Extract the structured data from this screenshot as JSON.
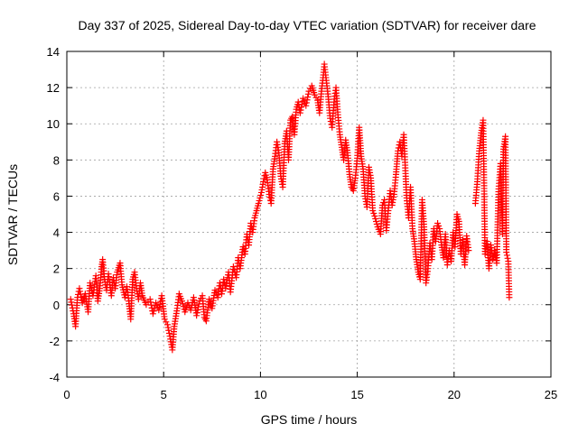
{
  "chart_data": {
    "type": "scatter",
    "title": "Day 337 of 2025, Sidereal Day-to-day VTEC variation (SDTVAR) for receiver dare",
    "xlabel": "GPS time / hours",
    "ylabel": "SDTVAR / TECUs",
    "xlim": [
      0,
      25
    ],
    "ylim": [
      -4,
      14
    ],
    "xticks": [
      0,
      5,
      10,
      15,
      20,
      25
    ],
    "yticks": [
      -4,
      -2,
      0,
      2,
      4,
      6,
      8,
      10,
      12,
      14
    ],
    "xtick_labels": [
      "0",
      "5",
      "10",
      "15",
      "20",
      "25"
    ],
    "ytick_labels": [
      "-4",
      "-2",
      "0",
      "2",
      "4",
      "6",
      "8",
      "10",
      "12",
      "14"
    ],
    "grid": true,
    "marker": "plus",
    "color": "#ff0000",
    "series": [
      {
        "name": "SDTVAR",
        "points": [
          [
            0.2,
            0.3
          ],
          [
            0.35,
            -0.5
          ],
          [
            0.45,
            -1.2
          ],
          [
            0.55,
            0.4
          ],
          [
            0.65,
            0.9
          ],
          [
            0.8,
            0.1
          ],
          [
            0.95,
            0.6
          ],
          [
            1.1,
            -0.4
          ],
          [
            1.2,
            1.2
          ],
          [
            1.35,
            0.5
          ],
          [
            1.5,
            1.6
          ],
          [
            1.6,
            0.2
          ],
          [
            1.7,
            0.9
          ],
          [
            1.8,
            2.1
          ],
          [
            1.85,
            2.5
          ],
          [
            1.95,
            1.4
          ],
          [
            2.05,
            0.8
          ],
          [
            2.15,
            1.7
          ],
          [
            2.3,
            0.5
          ],
          [
            2.4,
            1.5
          ],
          [
            2.5,
            0.9
          ],
          [
            2.6,
            1.8
          ],
          [
            2.75,
            2.3
          ],
          [
            2.85,
            1.1
          ],
          [
            3.0,
            0.4
          ],
          [
            3.1,
            1.0
          ],
          [
            3.2,
            0.2
          ],
          [
            3.3,
            -0.8
          ],
          [
            3.4,
            1.4
          ],
          [
            3.5,
            1.8
          ],
          [
            3.6,
            0.9
          ],
          [
            3.7,
            0.3
          ],
          [
            3.8,
            1.2
          ],
          [
            3.9,
            0.5
          ],
          [
            4.1,
            0.0
          ],
          [
            4.3,
            0.3
          ],
          [
            4.45,
            -0.5
          ],
          [
            4.6,
            0.1
          ],
          [
            4.75,
            -0.3
          ],
          [
            4.9,
            0.5
          ],
          [
            5.05,
            -0.8
          ],
          [
            5.2,
            -1.1
          ],
          [
            5.35,
            -1.9
          ],
          [
            5.45,
            -2.5
          ],
          [
            5.55,
            -1.2
          ],
          [
            5.7,
            -0.2
          ],
          [
            5.8,
            0.6
          ],
          [
            5.95,
            0.2
          ],
          [
            6.1,
            -0.4
          ],
          [
            6.25,
            0.1
          ],
          [
            6.4,
            -0.3
          ],
          [
            6.55,
            0.4
          ],
          [
            6.7,
            -0.6
          ],
          [
            6.85,
            0.2
          ],
          [
            7.0,
            0.5
          ],
          [
            7.1,
            -0.7
          ],
          [
            7.2,
            -0.9
          ],
          [
            7.35,
            0.3
          ],
          [
            7.5,
            -0.2
          ],
          [
            7.65,
            0.8
          ],
          [
            7.8,
            0.4
          ],
          [
            7.9,
            1.2
          ],
          [
            8.0,
            0.6
          ],
          [
            8.1,
            1.4
          ],
          [
            8.2,
            0.9
          ],
          [
            8.35,
            1.8
          ],
          [
            8.45,
            0.7
          ],
          [
            8.6,
            2.1
          ],
          [
            8.75,
            1.5
          ],
          [
            8.85,
            2.6
          ],
          [
            8.95,
            2.0
          ],
          [
            9.1,
            3.2
          ],
          [
            9.2,
            2.8
          ],
          [
            9.3,
            3.9
          ],
          [
            9.4,
            3.3
          ],
          [
            9.5,
            4.5
          ],
          [
            9.6,
            4.0
          ],
          [
            9.7,
            4.8
          ],
          [
            9.8,
            5.2
          ],
          [
            9.9,
            5.6
          ],
          [
            10.05,
            6.2
          ],
          [
            10.15,
            6.8
          ],
          [
            10.25,
            7.3
          ],
          [
            10.35,
            6.9
          ],
          [
            10.45,
            6.1
          ],
          [
            10.55,
            5.6
          ],
          [
            10.65,
            7.5
          ],
          [
            10.75,
            8.2
          ],
          [
            10.85,
            9.0
          ],
          [
            10.95,
            8.4
          ],
          [
            11.05,
            7.1
          ],
          [
            11.15,
            6.5
          ],
          [
            11.25,
            8.9
          ],
          [
            11.35,
            9.6
          ],
          [
            11.45,
            8.0
          ],
          [
            11.55,
            10.2
          ],
          [
            11.65,
            10.4
          ],
          [
            11.75,
            9.4
          ],
          [
            11.85,
            10.8
          ],
          [
            11.95,
            11.2
          ],
          [
            12.05,
            10.6
          ],
          [
            12.2,
            11.4
          ],
          [
            12.35,
            11.0
          ],
          [
            12.5,
            11.8
          ],
          [
            12.65,
            12.1
          ],
          [
            12.8,
            11.6
          ],
          [
            12.95,
            11.3
          ],
          [
            13.05,
            10.6
          ],
          [
            13.15,
            11.8
          ],
          [
            13.25,
            12.7
          ],
          [
            13.3,
            13.3
          ],
          [
            13.4,
            12.4
          ],
          [
            13.5,
            11.5
          ],
          [
            13.6,
            10.3
          ],
          [
            13.7,
            9.8
          ],
          [
            13.8,
            11.2
          ],
          [
            13.9,
            12.0
          ],
          [
            14.0,
            10.5
          ],
          [
            14.1,
            9.4
          ],
          [
            14.2,
            8.7
          ],
          [
            14.3,
            8.0
          ],
          [
            14.4,
            9.1
          ],
          [
            14.5,
            8.4
          ],
          [
            14.6,
            7.2
          ],
          [
            14.7,
            6.5
          ],
          [
            14.8,
            6.3
          ],
          [
            14.9,
            7.0
          ],
          [
            15.0,
            8.1
          ],
          [
            15.1,
            9.8
          ],
          [
            15.2,
            8.2
          ],
          [
            15.3,
            7.5
          ],
          [
            15.4,
            6.0
          ],
          [
            15.5,
            5.4
          ],
          [
            15.6,
            7.6
          ],
          [
            15.7,
            7.0
          ],
          [
            15.8,
            5.2
          ],
          [
            15.9,
            4.9
          ],
          [
            16.05,
            4.3
          ],
          [
            16.2,
            3.9
          ],
          [
            16.3,
            5.5
          ],
          [
            16.4,
            5.8
          ],
          [
            16.5,
            4.1
          ],
          [
            16.6,
            5.2
          ],
          [
            16.7,
            6.3
          ],
          [
            16.8,
            5.5
          ],
          [
            16.9,
            6.1
          ],
          [
            17.0,
            7.2
          ],
          [
            17.1,
            8.5
          ],
          [
            17.2,
            9.0
          ],
          [
            17.3,
            8.2
          ],
          [
            17.4,
            9.4
          ],
          [
            17.5,
            7.1
          ],
          [
            17.55,
            5.9
          ],
          [
            17.65,
            4.8
          ],
          [
            17.75,
            6.5
          ],
          [
            17.85,
            4.2
          ],
          [
            17.95,
            3.5
          ],
          [
            18.05,
            2.5
          ],
          [
            18.15,
            1.8
          ],
          [
            18.25,
            1.4
          ],
          [
            18.35,
            5.8
          ],
          [
            18.45,
            4.3
          ],
          [
            18.55,
            1.2
          ],
          [
            18.65,
            2.0
          ],
          [
            18.75,
            3.4
          ],
          [
            18.85,
            2.5
          ],
          [
            18.95,
            4.2
          ],
          [
            19.05,
            3.5
          ],
          [
            19.15,
            4.5
          ],
          [
            19.25,
            4.2
          ],
          [
            19.35,
            3.3
          ],
          [
            19.45,
            2.6
          ],
          [
            19.55,
            3.9
          ],
          [
            19.65,
            2.2
          ],
          [
            19.75,
            3.0
          ],
          [
            19.85,
            2.4
          ],
          [
            19.95,
            4.0
          ],
          [
            20.05,
            3.2
          ],
          [
            20.15,
            5.0
          ],
          [
            20.25,
            4.6
          ],
          [
            20.35,
            2.8
          ],
          [
            20.45,
            3.6
          ],
          [
            20.55,
            2.2
          ],
          [
            20.65,
            3.8
          ],
          [
            20.75,
            3.0
          ],
          [
            21.1,
            5.6
          ],
          [
            21.2,
            6.8
          ],
          [
            21.3,
            8.5
          ],
          [
            21.4,
            9.5
          ],
          [
            21.5,
            10.2
          ],
          [
            21.6,
            2.8
          ],
          [
            21.7,
            3.5
          ],
          [
            21.8,
            2.0
          ],
          [
            21.9,
            3.3
          ],
          [
            22.0,
            2.5
          ],
          [
            22.1,
            3.0
          ],
          [
            22.2,
            2.3
          ],
          [
            22.3,
            6.4
          ],
          [
            22.4,
            7.8
          ],
          [
            22.5,
            3.9
          ],
          [
            22.55,
            8.6
          ],
          [
            22.65,
            9.3
          ],
          [
            22.7,
            2.9
          ],
          [
            22.8,
            2.4
          ],
          [
            22.85,
            0.4
          ]
        ]
      }
    ]
  }
}
